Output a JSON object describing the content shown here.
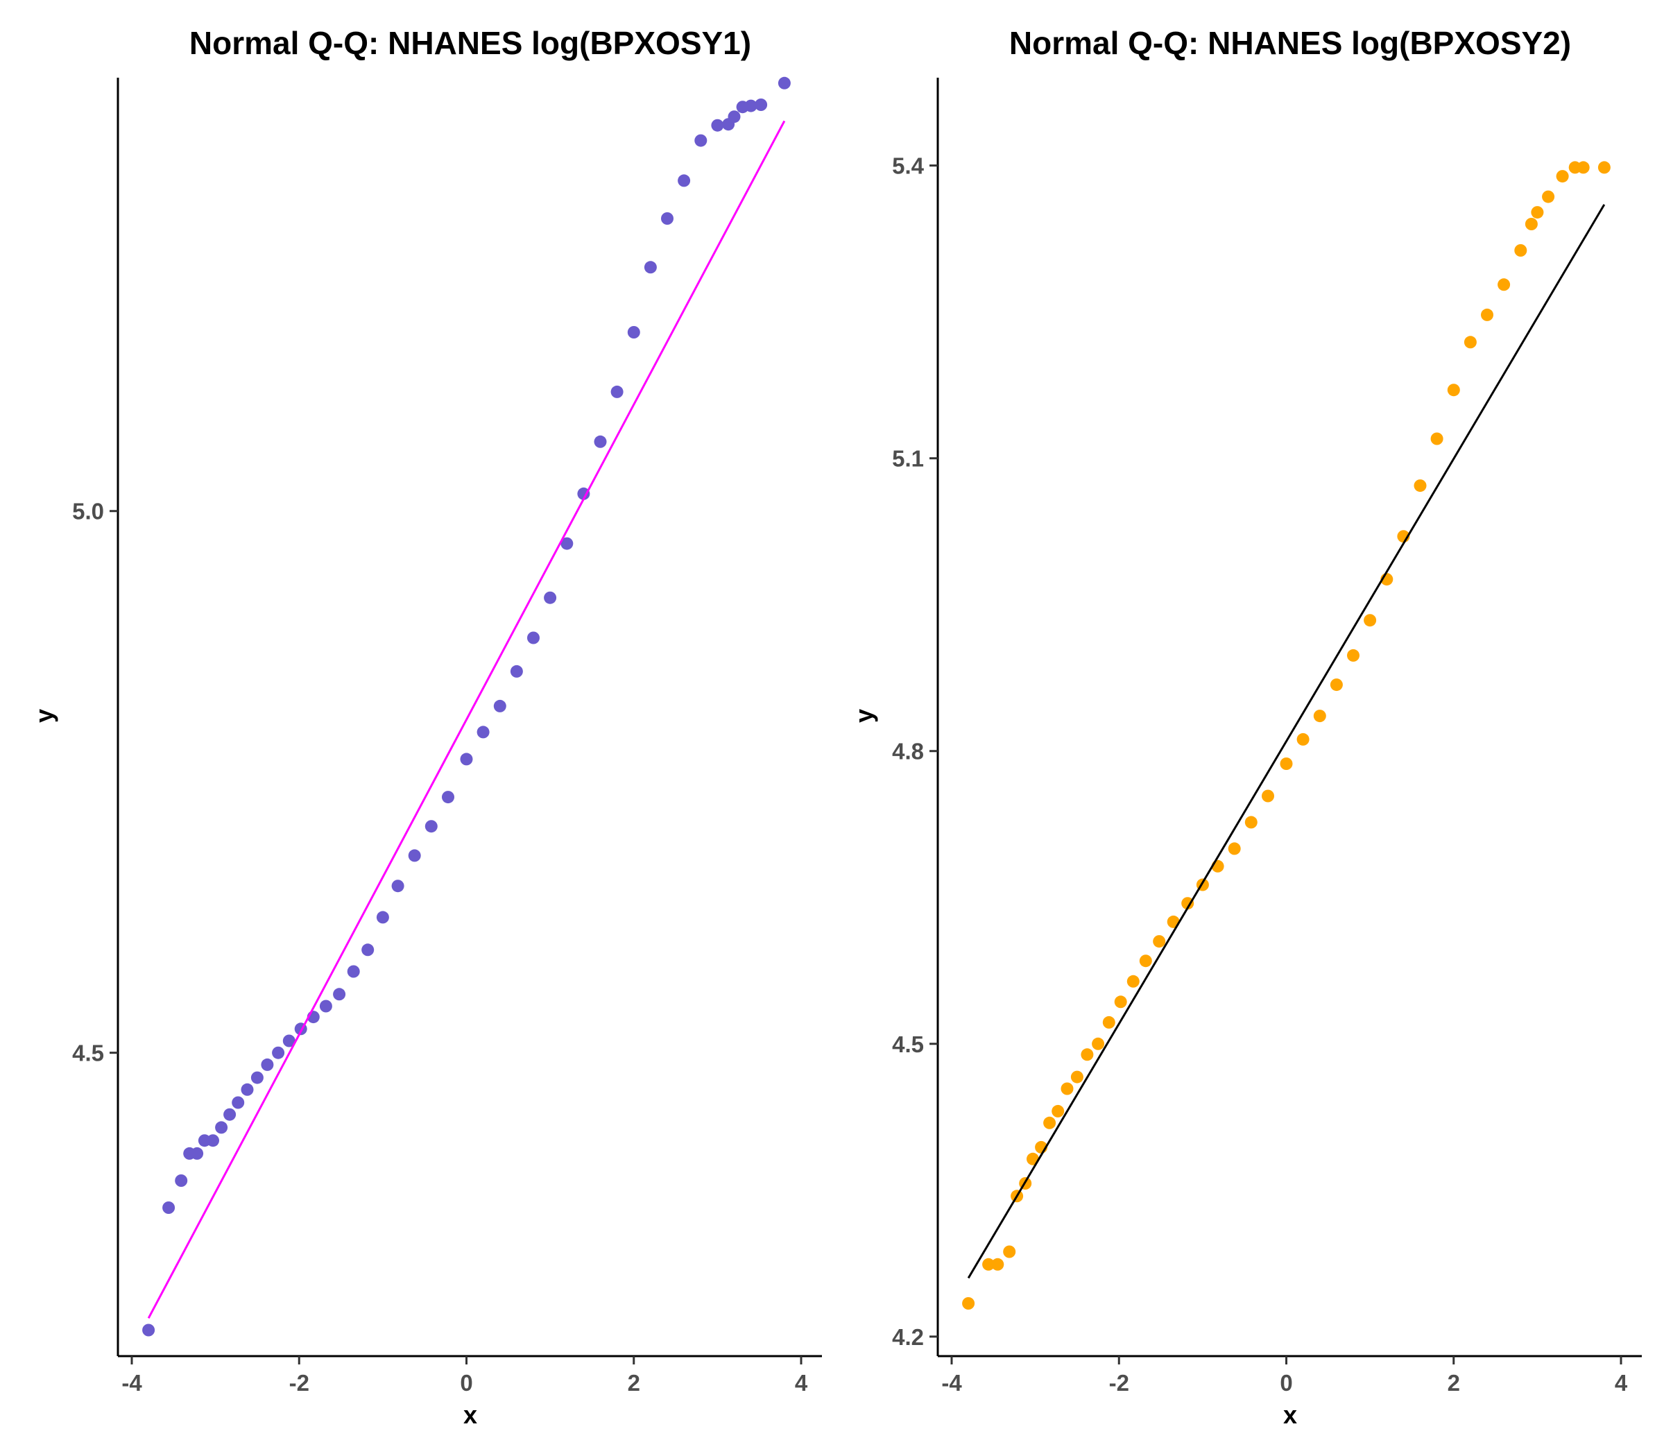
{
  "chart_data": [
    {
      "type": "scatter",
      "title": "Normal Q-Q: NHANES log(BPXOSY1)",
      "xlabel": "x",
      "ylabel": "y",
      "xlim": [
        -4,
        4
      ],
      "ylim": [
        4.22,
        5.4
      ],
      "xticks": [
        -4,
        -2,
        0,
        2,
        4
      ],
      "xtick_labels": [
        "-4",
        "-2",
        "0",
        "2",
        "4"
      ],
      "yticks": [
        4.5,
        5.0
      ],
      "ytick_labels": [
        "4.5",
        "5.0"
      ],
      "grid": false,
      "point_color": "#6A5ACD",
      "line_color": "#FF00FF",
      "reference_line": {
        "x": [
          -3.8,
          3.8
        ],
        "y": [
          4.255,
          5.36
        ]
      },
      "points": [
        [
          -3.8,
          4.244
        ],
        [
          -3.56,
          4.357
        ],
        [
          -3.41,
          4.382
        ],
        [
          -3.31,
          4.407
        ],
        [
          -3.22,
          4.407
        ],
        [
          -3.13,
          4.419
        ],
        [
          -3.03,
          4.419
        ],
        [
          -2.93,
          4.431
        ],
        [
          -2.83,
          4.443
        ],
        [
          -2.73,
          4.454
        ],
        [
          -2.62,
          4.466
        ],
        [
          -2.5,
          4.477
        ],
        [
          -2.38,
          4.489
        ],
        [
          -2.25,
          4.5
        ],
        [
          -2.12,
          4.511
        ],
        [
          -1.98,
          4.522
        ],
        [
          -1.83,
          4.533
        ],
        [
          -1.68,
          4.543
        ],
        [
          -1.52,
          4.554
        ],
        [
          -1.35,
          4.575
        ],
        [
          -1.18,
          4.595
        ],
        [
          -1.0,
          4.625
        ],
        [
          -0.82,
          4.654
        ],
        [
          -0.62,
          4.682
        ],
        [
          -0.42,
          4.709
        ],
        [
          -0.22,
          4.736
        ],
        [
          0.0,
          4.771
        ],
        [
          0.2,
          4.796
        ],
        [
          0.4,
          4.82
        ],
        [
          0.6,
          4.852
        ],
        [
          0.8,
          4.883
        ],
        [
          1.0,
          4.92
        ],
        [
          1.2,
          4.97
        ],
        [
          1.4,
          5.016
        ],
        [
          1.6,
          5.064
        ],
        [
          1.8,
          5.11
        ],
        [
          2.0,
          5.165
        ],
        [
          2.2,
          5.225
        ],
        [
          2.4,
          5.27
        ],
        [
          2.6,
          5.305
        ],
        [
          2.8,
          5.342
        ],
        [
          3.0,
          5.356
        ],
        [
          3.13,
          5.357
        ],
        [
          3.2,
          5.364
        ],
        [
          3.3,
          5.373
        ],
        [
          3.4,
          5.374
        ],
        [
          3.52,
          5.375
        ],
        [
          3.8,
          5.395
        ]
      ]
    },
    {
      "type": "scatter",
      "title": "Normal Q-Q: NHANES log(BPXOSY2)",
      "xlabel": "x",
      "ylabel": "y",
      "xlim": [
        -4,
        4
      ],
      "ylim": [
        4.18,
        5.49
      ],
      "xticks": [
        -4,
        -2,
        0,
        2,
        4
      ],
      "xtick_labels": [
        "-4",
        "-2",
        "0",
        "2",
        "4"
      ],
      "yticks": [
        4.2,
        4.5,
        4.8,
        5.1,
        5.4
      ],
      "ytick_labels": [
        "4.2",
        "4.5",
        "4.8",
        "5.1",
        "5.4"
      ],
      "grid": false,
      "point_color": "#FFA500",
      "line_color": "#000000",
      "reference_line": {
        "x": [
          -3.8,
          3.8
        ],
        "y": [
          4.26,
          5.36
        ]
      },
      "points": [
        [
          -3.8,
          4.234
        ],
        [
          -3.56,
          4.274
        ],
        [
          -3.45,
          4.274
        ],
        [
          -3.31,
          4.287
        ],
        [
          -3.22,
          4.344
        ],
        [
          -3.12,
          4.357
        ],
        [
          -3.03,
          4.382
        ],
        [
          -2.93,
          4.394
        ],
        [
          -2.83,
          4.419
        ],
        [
          -2.73,
          4.431
        ],
        [
          -2.62,
          4.454
        ],
        [
          -2.5,
          4.466
        ],
        [
          -2.38,
          4.489
        ],
        [
          -2.25,
          4.5
        ],
        [
          -2.12,
          4.522
        ],
        [
          -1.98,
          4.543
        ],
        [
          -1.83,
          4.564
        ],
        [
          -1.68,
          4.585
        ],
        [
          -1.52,
          4.605
        ],
        [
          -1.35,
          4.625
        ],
        [
          -1.18,
          4.644
        ],
        [
          -1.0,
          4.663
        ],
        [
          -0.82,
          4.682
        ],
        [
          -0.62,
          4.7
        ],
        [
          -0.42,
          4.727
        ],
        [
          -0.22,
          4.754
        ],
        [
          0.0,
          4.787
        ],
        [
          0.2,
          4.812
        ],
        [
          0.4,
          4.836
        ],
        [
          0.6,
          4.868
        ],
        [
          0.8,
          4.898
        ],
        [
          1.0,
          4.934
        ],
        [
          1.2,
          4.976
        ],
        [
          1.4,
          5.02
        ],
        [
          1.6,
          5.072
        ],
        [
          1.8,
          5.12
        ],
        [
          2.0,
          5.17
        ],
        [
          2.2,
          5.219
        ],
        [
          2.4,
          5.247
        ],
        [
          2.6,
          5.278
        ],
        [
          2.8,
          5.313
        ],
        [
          2.93,
          5.34
        ],
        [
          3.0,
          5.352
        ],
        [
          3.13,
          5.368
        ],
        [
          3.3,
          5.389
        ],
        [
          3.45,
          5.398
        ],
        [
          3.55,
          5.398
        ],
        [
          3.8,
          5.398
        ]
      ]
    }
  ]
}
